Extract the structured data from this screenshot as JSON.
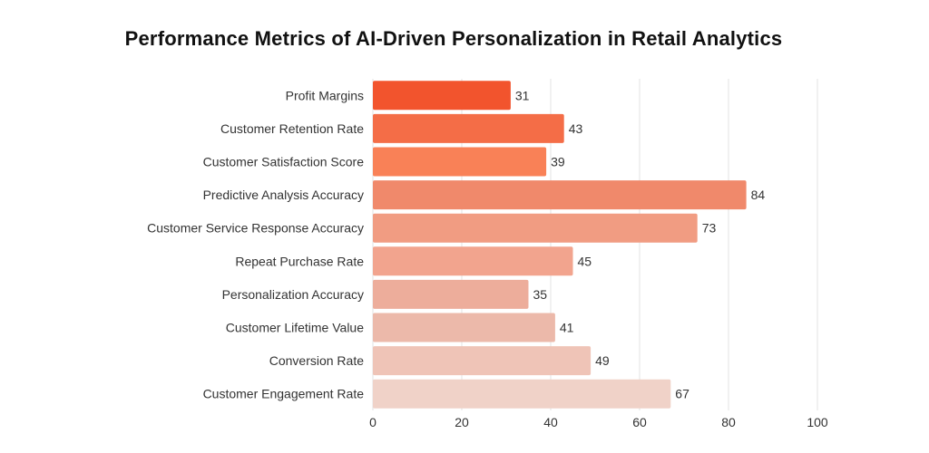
{
  "chart_data": {
    "type": "bar",
    "orientation": "horizontal",
    "title": "Performance Metrics of AI-Driven Personalization in Retail Analytics",
    "categories": [
      "Profit Margins",
      "Customer Retention Rate",
      "Customer Satisfaction Score",
      "Predictive Analysis Accuracy",
      "Customer Service Response Accuracy",
      "Repeat Purchase Rate",
      "Personalization Accuracy",
      "Customer Lifetime Value",
      "Conversion Rate",
      "Customer Engagement Rate"
    ],
    "values": [
      31,
      43,
      39,
      84,
      73,
      45,
      35,
      41,
      49,
      67
    ],
    "colors": [
      "#f2542d",
      "#f46d47",
      "#f98157",
      "#f0896b",
      "#f19c82",
      "#f2a48e",
      "#edad9b",
      "#ecb9aa",
      "#efc4b7",
      "#f0d2c8"
    ],
    "xlim": [
      0,
      100
    ],
    "xticks": [
      0,
      20,
      40,
      60,
      80,
      100
    ],
    "grid": true,
    "data_labels": true
  }
}
